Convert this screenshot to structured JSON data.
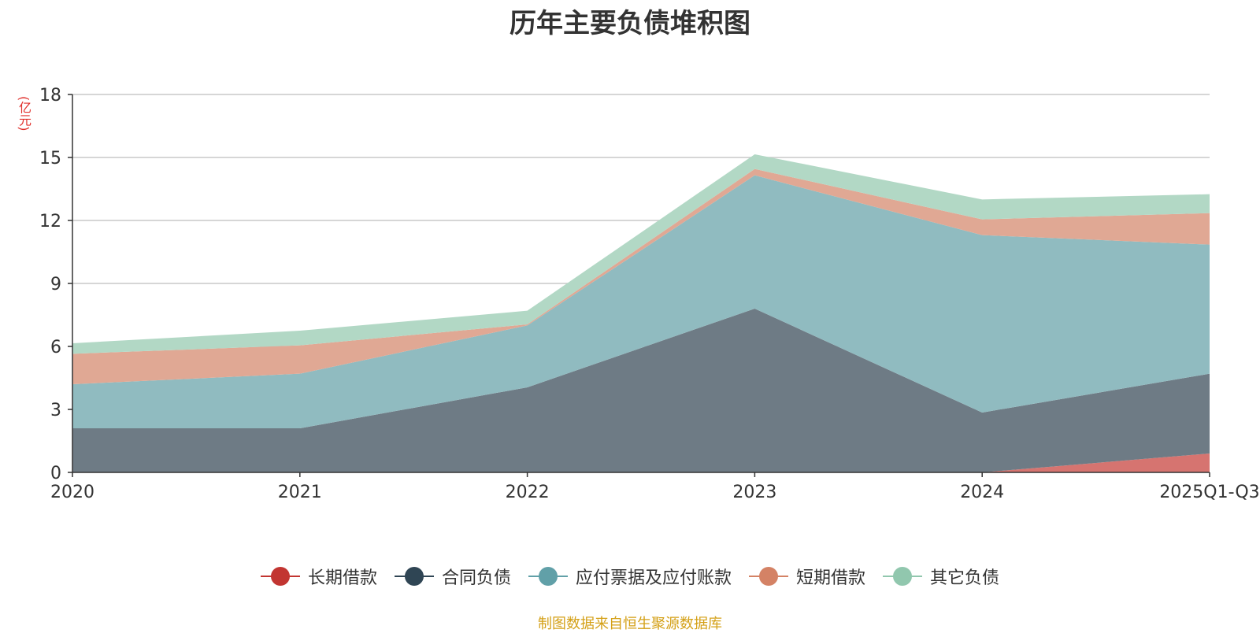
{
  "title": "历年主要负债堆积图",
  "unit": "(亿元)",
  "source": "制图数据来自恒生聚源数据库",
  "chart_data": {
    "type": "area",
    "stacked": true,
    "title": "历年主要负债堆积图",
    "ylabel": "(亿元)",
    "ylim": [
      0,
      18
    ],
    "yticks": [
      "0",
      "3",
      "6",
      "9",
      "12",
      "15",
      "18"
    ],
    "categories": [
      "2020",
      "2021",
      "2022",
      "2023",
      "2024",
      "2025Q1-Q3"
    ],
    "series": [
      {
        "name": "长期借款",
        "color": "#c23531",
        "area_color": "#d67470",
        "values": [
          0,
          0,
          0,
          0,
          0,
          0.9
        ]
      },
      {
        "name": "合同负债",
        "color": "#2f4554",
        "area_color": "#6e7b85",
        "values": [
          2.1,
          2.1,
          4.05,
          7.8,
          2.85,
          3.8
        ]
      },
      {
        "name": "应付票据及应付账款",
        "color": "#61a0a8",
        "area_color": "#90bbc0",
        "values": [
          2.1,
          2.6,
          2.95,
          6.35,
          8.45,
          6.15
        ]
      },
      {
        "name": "短期借款",
        "color": "#d48265",
        "area_color": "#e0a894",
        "values": [
          1.45,
          1.35,
          0.05,
          0.3,
          0.75,
          1.5
        ]
      },
      {
        "name": "其它负债",
        "color": "#91c7ae",
        "area_color": "#b2d8c5",
        "values": [
          0.5,
          0.7,
          0.65,
          0.7,
          0.95,
          0.9
        ]
      }
    ]
  }
}
